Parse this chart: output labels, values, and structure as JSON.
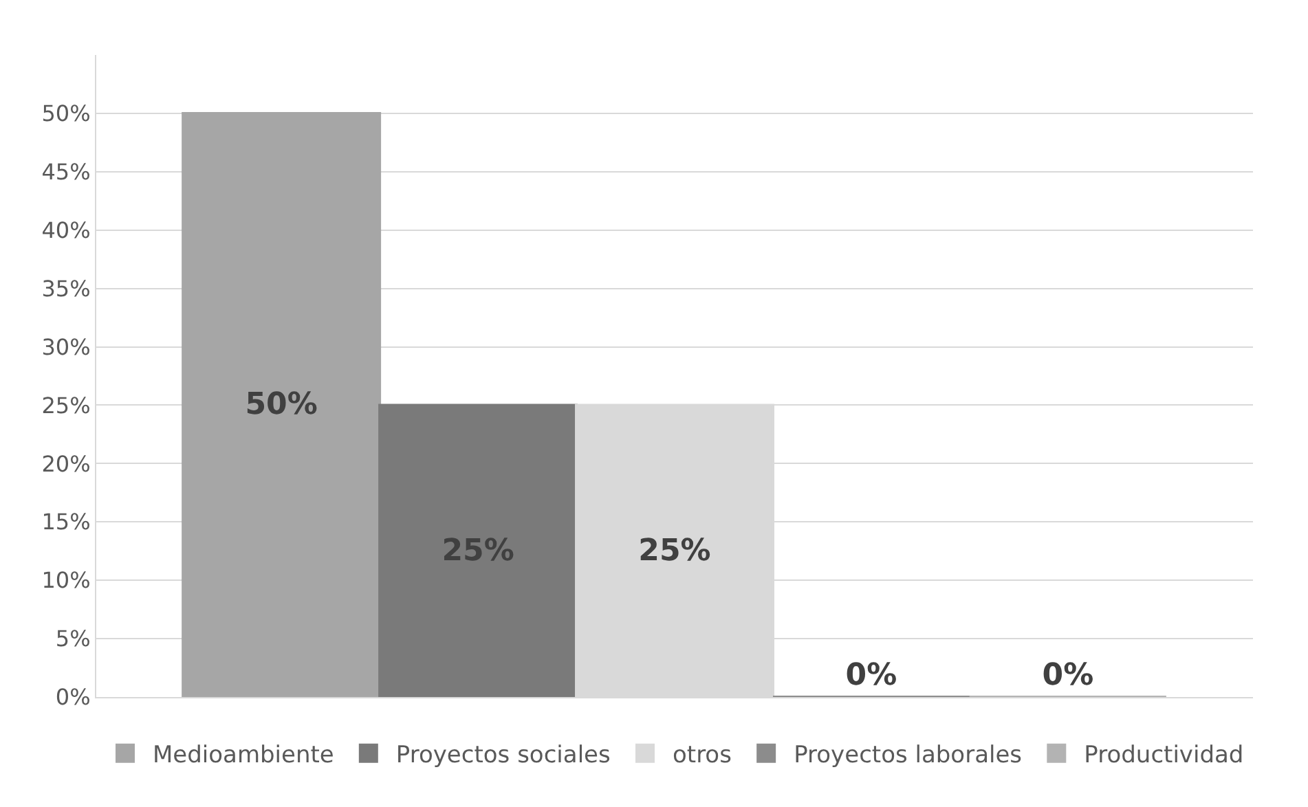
{
  "chart_data": {
    "type": "bar",
    "categories": [
      null
    ],
    "series": [
      {
        "name": "Medioambiente",
        "color": "#a6a6a6",
        "values": [
          50
        ],
        "value_labels": [
          "50%"
        ]
      },
      {
        "name": "Proyectos sociales",
        "color": "#7a7a7a",
        "values": [
          25
        ],
        "value_labels": [
          "25%"
        ]
      },
      {
        "name": "otros",
        "color": "#d9d9d9",
        "values": [
          25
        ],
        "value_labels": [
          "25%"
        ]
      },
      {
        "name": "Proyectos laborales",
        "color": "#8c8c8c",
        "values": [
          0
        ],
        "value_labels": [
          "0%"
        ]
      },
      {
        "name": "Productividad",
        "color": "#b3b3b3",
        "values": [
          0
        ],
        "value_labels": [
          "0%"
        ]
      }
    ],
    "ylim": [
      0,
      55
    ],
    "yticks": [
      {
        "value": 0,
        "label": "0%"
      },
      {
        "value": 5,
        "label": "5%"
      },
      {
        "value": 10,
        "label": "10%"
      },
      {
        "value": 15,
        "label": "15%"
      },
      {
        "value": 20,
        "label": "20%"
      },
      {
        "value": 25,
        "label": "25%"
      },
      {
        "value": 30,
        "label": "30%"
      },
      {
        "value": 35,
        "label": "35%"
      },
      {
        "value": 40,
        "label": "40%"
      },
      {
        "value": 45,
        "label": "45%"
      },
      {
        "value": 50,
        "label": "50%"
      }
    ],
    "grid": "y",
    "legend": "bottom"
  }
}
